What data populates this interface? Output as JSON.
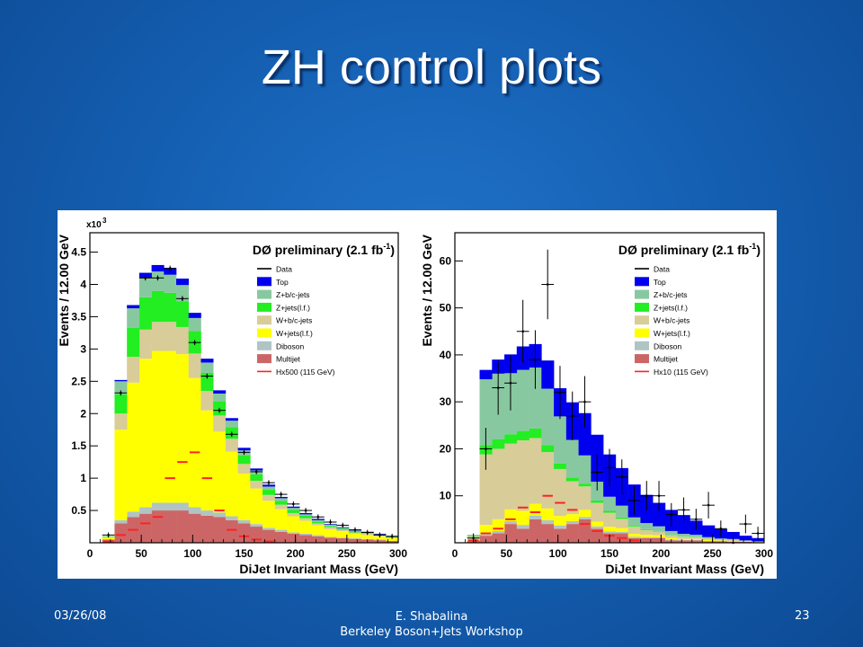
{
  "slide": {
    "title": "ZH control plots",
    "footer_date": "03/26/08",
    "footer_author": "E. Shabalina",
    "footer_event": "Berkeley Boson+Jets Workshop",
    "page_number": "23"
  },
  "chart_data": [
    {
      "type": "bar",
      "stacked": true,
      "title": "DØ preliminary (2.1 fb",
      "title_sup": "-1",
      "title_end": ")",
      "xlabel": "DiJet Invariant Mass (GeV)",
      "ylabel": "Events / 12.00 GeV",
      "y_multiplier": "x10",
      "y_multiplier_exp": "3",
      "xlim": [
        0,
        300
      ],
      "ylim": [
        0,
        4.8
      ],
      "x_ticks": [
        "0",
        "50",
        "100",
        "150",
        "200",
        "250",
        "300"
      ],
      "y_ticks": [
        "0.5",
        "1",
        "1.5",
        "2",
        "2.5",
        "3",
        "3.5",
        "4",
        "4.5"
      ],
      "bin_edges": [
        12,
        24,
        36,
        48,
        60,
        72,
        84,
        96,
        108,
        120,
        132,
        144,
        156,
        168,
        180,
        192,
        204,
        216,
        228,
        240,
        252,
        264,
        276,
        288,
        300
      ],
      "series": [
        {
          "name": "Multijet",
          "color": "#cc6666",
          "values": [
            0.05,
            0.3,
            0.4,
            0.45,
            0.5,
            0.5,
            0.5,
            0.45,
            0.42,
            0.4,
            0.35,
            0.3,
            0.25,
            0.2,
            0.17,
            0.14,
            0.12,
            0.1,
            0.08,
            0.07,
            0.06,
            0.05,
            0.04,
            0.03
          ]
        },
        {
          "name": "Diboson",
          "color": "#b0c4c4",
          "values": [
            0.0,
            0.05,
            0.08,
            0.1,
            0.12,
            0.12,
            0.12,
            0.1,
            0.08,
            0.07,
            0.06,
            0.05,
            0.04,
            0.03,
            0.03,
            0.02,
            0.02,
            0.02,
            0.01,
            0.01,
            0.01,
            0.01,
            0.01,
            0.0
          ]
        },
        {
          "name": "W+jets(l.f.)",
          "color": "#ffff00",
          "values": [
            0.03,
            1.4,
            2.0,
            2.3,
            2.35,
            2.35,
            2.3,
            2.0,
            1.55,
            1.25,
            1.0,
            0.72,
            0.55,
            0.42,
            0.32,
            0.25,
            0.2,
            0.15,
            0.12,
            0.1,
            0.07,
            0.06,
            0.05,
            0.04
          ]
        },
        {
          "name": "W+b/c-jets",
          "color": "#d8cc99",
          "values": [
            0.01,
            0.25,
            0.4,
            0.45,
            0.45,
            0.45,
            0.42,
            0.38,
            0.3,
            0.25,
            0.2,
            0.15,
            0.12,
            0.09,
            0.07,
            0.05,
            0.04,
            0.03,
            0.03,
            0.02,
            0.02,
            0.02,
            0.01,
            0.01
          ]
        },
        {
          "name": "Z+jets(l.f.)",
          "color": "#22ee22",
          "values": [
            0.01,
            0.3,
            0.45,
            0.5,
            0.48,
            0.45,
            0.4,
            0.35,
            0.28,
            0.22,
            0.18,
            0.13,
            0.1,
            0.08,
            0.06,
            0.05,
            0.04,
            0.03,
            0.02,
            0.02,
            0.02,
            0.01,
            0.01,
            0.01
          ]
        },
        {
          "name": "Z+b/c-jets",
          "color": "#88c8a0",
          "values": [
            0.0,
            0.2,
            0.3,
            0.3,
            0.3,
            0.28,
            0.25,
            0.2,
            0.16,
            0.12,
            0.1,
            0.08,
            0.06,
            0.05,
            0.04,
            0.03,
            0.02,
            0.02,
            0.02,
            0.01,
            0.01,
            0.01,
            0.01,
            0.0
          ]
        },
        {
          "name": "Top",
          "color": "#0000ee",
          "values": [
            0.0,
            0.02,
            0.05,
            0.08,
            0.1,
            0.1,
            0.1,
            0.08,
            0.06,
            0.05,
            0.04,
            0.04,
            0.03,
            0.03,
            0.02,
            0.02,
            0.02,
            0.02,
            0.01,
            0.01,
            0.01,
            0.01,
            0.01,
            0.01
          ]
        }
      ],
      "data_points": {
        "name": "Data",
        "x": [
          18,
          30,
          54,
          66,
          78,
          90,
          102,
          114,
          126,
          138,
          150,
          162,
          174,
          186,
          198,
          210,
          222,
          234,
          246,
          258,
          270,
          282,
          294
        ],
        "y": [
          0.12,
          2.32,
          4.1,
          4.1,
          4.25,
          3.78,
          3.1,
          2.58,
          2.05,
          1.68,
          1.4,
          1.1,
          0.93,
          0.75,
          0.6,
          0.5,
          0.4,
          0.32,
          0.27,
          0.2,
          0.16,
          0.12,
          0.1
        ]
      },
      "signal": {
        "name": "Hx500 (115 GeV)",
        "color": "#ff2222",
        "x": [
          18,
          30,
          42,
          54,
          66,
          78,
          90,
          102,
          114,
          126,
          138,
          150,
          162,
          174
        ],
        "y": [
          0.02,
          0.12,
          0.2,
          0.3,
          0.4,
          1.0,
          1.25,
          1.4,
          1.0,
          0.5,
          0.2,
          0.1,
          0.05,
          0.02
        ]
      }
    },
    {
      "type": "bar",
      "stacked": true,
      "title": "DØ preliminary (2.1 fb",
      "title_sup": "-1",
      "title_end": ")",
      "xlabel": "DiJet Invariant Mass (GeV)",
      "ylabel": "Events / 12.00 GeV",
      "xlim": [
        0,
        300
      ],
      "ylim": [
        0,
        66
      ],
      "x_ticks": [
        "0",
        "50",
        "100",
        "150",
        "200",
        "250",
        "300"
      ],
      "y_ticks": [
        "10",
        "20",
        "30",
        "40",
        "50",
        "60"
      ],
      "bin_edges": [
        12,
        24,
        36,
        48,
        60,
        72,
        84,
        96,
        108,
        120,
        132,
        144,
        156,
        168,
        180,
        192,
        204,
        216,
        228,
        240,
        252,
        264,
        276,
        288,
        300
      ],
      "series": [
        {
          "name": "Multijet",
          "color": "#cc6666",
          "values": [
            0.5,
            1.5,
            2.0,
            4.0,
            3.0,
            5.0,
            4.0,
            3.0,
            4.0,
            5.0,
            3.0,
            2.0,
            2.0,
            1.0,
            1.0,
            1.0,
            0.5,
            0.5,
            0.5,
            0.3,
            0.3,
            0.2,
            0.2,
            0.1
          ]
        },
        {
          "name": "Diboson",
          "color": "#b0c4c4",
          "values": [
            0.0,
            0.3,
            0.5,
            0.6,
            0.8,
            0.8,
            0.8,
            0.7,
            0.6,
            0.5,
            0.5,
            0.4,
            0.3,
            0.3,
            0.2,
            0.2,
            0.2,
            0.1,
            0.1,
            0.1,
            0.1,
            0.1,
            0.0,
            0.0
          ]
        },
        {
          "name": "W+jets(l.f.)",
          "color": "#ffff00",
          "values": [
            0.3,
            2.0,
            2.5,
            2.5,
            3.0,
            2.5,
            2.5,
            2.0,
            1.5,
            1.5,
            1.0,
            1.0,
            0.8,
            0.6,
            0.5,
            0.4,
            0.3,
            0.2,
            0.2,
            0.2,
            0.1,
            0.1,
            0.1,
            0.0
          ]
        },
        {
          "name": "W+b/c-jets",
          "color": "#d8cc99",
          "values": [
            0.5,
            15.0,
            15.0,
            14.0,
            15.0,
            14.0,
            12.0,
            10.0,
            7.0,
            5.0,
            4.0,
            3.0,
            2.0,
            1.5,
            1.0,
            0.8,
            0.6,
            0.5,
            0.4,
            0.3,
            0.2,
            0.2,
            0.1,
            0.1
          ]
        },
        {
          "name": "Z+jets(l.f.)",
          "color": "#22ee22",
          "values": [
            0.1,
            2.0,
            2.0,
            2.0,
            2.0,
            2.0,
            1.5,
            1.2,
            0.8,
            0.6,
            0.5,
            0.4,
            0.3,
            0.2,
            0.2,
            0.1,
            0.1,
            0.1,
            0.1,
            0.0,
            0.0,
            0.0,
            0.0,
            0.0
          ]
        },
        {
          "name": "Z+b/c-jets",
          "color": "#88c8a0",
          "values": [
            0.3,
            14.0,
            14.0,
            13.0,
            13.0,
            13.0,
            12.0,
            10.0,
            8.0,
            6.0,
            4.0,
            3.0,
            2.5,
            1.8,
            1.3,
            1.0,
            0.8,
            0.5,
            0.4,
            0.3,
            0.2,
            0.2,
            0.1,
            0.1
          ]
        },
        {
          "name": "Top",
          "color": "#0000ee",
          "values": [
            0.0,
            2.0,
            3.0,
            4.0,
            5.0,
            5.0,
            6.0,
            6.0,
            8.0,
            9.0,
            10.0,
            9.0,
            8.0,
            7.0,
            6.0,
            5.0,
            4.5,
            4.0,
            3.0,
            2.5,
            2.0,
            1.5,
            1.0,
            0.7
          ]
        }
      ],
      "data_points": {
        "name": "Data",
        "x": [
          18,
          30,
          42,
          54,
          66,
          78,
          90,
          102,
          114,
          126,
          138,
          150,
          162,
          174,
          186,
          198,
          210,
          222,
          234,
          246,
          258,
          270,
          282,
          294
        ],
        "y": [
          1,
          20,
          33,
          34,
          45,
          39,
          55,
          32,
          27,
          30,
          15,
          16,
          14,
          9,
          10,
          10,
          6,
          7,
          5,
          8,
          3,
          0,
          4,
          2
        ]
      },
      "signal": {
        "name": "Hx10 (115 GeV)",
        "color": "#ff2222",
        "x": [
          18,
          30,
          42,
          54,
          66,
          78,
          90,
          102,
          114,
          126,
          138,
          150,
          162,
          174
        ],
        "y": [
          0.5,
          2.0,
          3.0,
          5.0,
          7.5,
          6.5,
          10.0,
          8.5,
          7.0,
          4.0,
          2.5,
          1.5,
          1.0,
          0.5
        ]
      }
    }
  ]
}
